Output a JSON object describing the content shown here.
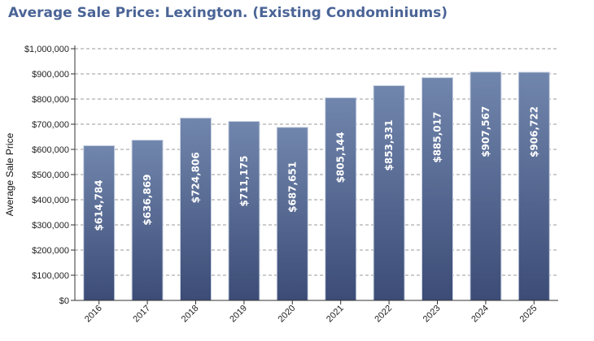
{
  "chart_data": {
    "type": "bar",
    "title": "Average Sale Price: Lexington. (Existing Condominiums)",
    "xlabel": "",
    "ylabel": "Average Sale Price",
    "categories": [
      "2016",
      "2017",
      "2018",
      "2019",
      "2020",
      "2021",
      "2022",
      "2023",
      "2024",
      "2025"
    ],
    "values": [
      614784,
      636869,
      724806,
      711175,
      687651,
      805144,
      853331,
      885017,
      907567,
      906722
    ],
    "value_labels": [
      "$614,784",
      "$636,869",
      "$724,806",
      "$711,175",
      "$687,651",
      "$805,144",
      "$853,331",
      "$885,017",
      "$907,567",
      "$906,722"
    ],
    "ylim": [
      0,
      1000000
    ],
    "yticks": [
      0,
      100000,
      200000,
      300000,
      400000,
      500000,
      600000,
      700000,
      800000,
      900000,
      1000000
    ],
    "ytick_labels": [
      "$0",
      "$100,000",
      "$200,000",
      "$300,000",
      "$400,000",
      "$500,000",
      "$600,000",
      "$700,000",
      "$800,000",
      "$900,000",
      "$1,000,000"
    ],
    "grid": true,
    "legend": "none",
    "colors": {
      "bar_top": "#7186ad",
      "bar_bottom": "#3c4c76",
      "bar_edge": "#c9d2e3",
      "title": "#4a6496",
      "grid": "#999999"
    }
  }
}
